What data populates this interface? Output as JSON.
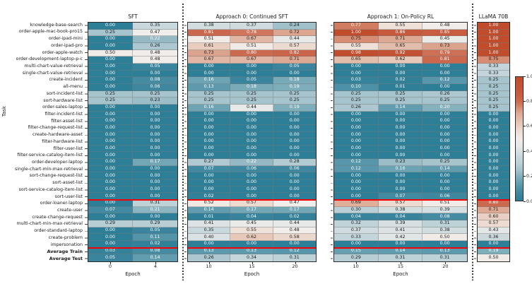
{
  "figure": {
    "ylabel": "Task",
    "xlabel": "Epoch",
    "colorbar_ticks": [
      "1.0",
      "0.8",
      "0.6",
      "0.4",
      "0.2",
      "0.0"
    ],
    "colors": {
      "cmap_low": "#2d7e97",
      "cmap_mid": "#f1efed",
      "cmap_high": "#c04c2c",
      "separator_line": "#f40000"
    }
  },
  "chart_data": {
    "type": "heatmap",
    "value_range": [
      0,
      1
    ],
    "rows": [
      "knowledge-base-search",
      "order-apple-mac-book-pro15",
      "order-ipad-mini",
      "order-ipad-pro",
      "order-apple-watch",
      "order-development-laptop-p-c",
      "multi-chart-value-retrieval",
      "single-chart-value-retrieval",
      "create-incident",
      "all-menu",
      "sort-incident-list",
      "sort-hardware-list",
      "order-sales-laptop",
      "filter-incident-list",
      "filter-asset-list",
      "filter-change-request-list",
      "create-hardware-asset",
      "filter-hardware-list",
      "filter-user-list",
      "filter-service-catalog-item-list",
      "order-developer-laptop",
      "single-chart-min-max-retrieval",
      "sort-change-request-list",
      "sort-asset-list",
      "sort-service-catalog-item-list",
      "sort-user-list",
      "order-loaner-laptop",
      "create-user",
      "create-change-request",
      "multi-chart-min-max-retrieval",
      "order-standard-laptop",
      "create-problem",
      "impersonation",
      "Average Train",
      "Average Test"
    ],
    "bold_rows": [
      "Average Train",
      "Average Test"
    ],
    "red_separator_after_row_indices": [
      25,
      32
    ],
    "panels": [
      {
        "title": "SFT",
        "epochs": [
          "0",
          "4"
        ],
        "show_xlabel": true,
        "values": [
          [
            0.0,
            0.35
          ],
          [
            0.25,
            0.47
          ],
          [
            0.0,
            0.22
          ],
          [
            0.0,
            0.26
          ],
          [
            0.5,
            0.48
          ],
          [
            0.0,
            0.48
          ],
          [
            0.0,
            0.05
          ],
          [
            0.0,
            0.0
          ],
          [
            0.0,
            0.08
          ],
          [
            0.0,
            0.06
          ],
          [
            0.25,
            0.25
          ],
          [
            0.25,
            0.23
          ],
          [
            0.0,
            0.0
          ],
          [
            0.0,
            0.0
          ],
          [
            0.0,
            0.0
          ],
          [
            0.0,
            0.0
          ],
          [
            0.0,
            0.0
          ],
          [
            0.0,
            0.0
          ],
          [
            0.0,
            0.0
          ],
          [
            0.0,
            0.0
          ],
          [
            0.0,
            0.17
          ],
          [
            0.0,
            0.0
          ],
          [
            0.0,
            0.0
          ],
          [
            0.0,
            0.0
          ],
          [
            0.0,
            0.0
          ],
          [
            0.0,
            0.0
          ],
          [
            0.0,
            0.31
          ],
          [
            0.07,
            0.21
          ],
          [
            0.0,
            0.0
          ],
          [
            0.29,
            0.29
          ],
          [
            0.0,
            0.05
          ],
          [
            0.0,
            0.11
          ],
          [
            0.0,
            0.02
          ],
          [
            0.03,
            0.08
          ],
          [
            0.05,
            0.14
          ]
        ]
      },
      {
        "title": "Approach 0: Continued SFT",
        "epochs": [
          "10",
          "15",
          "20"
        ],
        "show_xlabel": true,
        "values": [
          [
            0.38,
            0.37,
            0.24
          ],
          [
            0.81,
            0.78,
            0.72
          ],
          [
            0.51,
            0.67,
            0.44
          ],
          [
            0.61,
            0.51,
            0.57
          ],
          [
            0.73,
            0.8,
            0.82
          ],
          [
            0.67,
            0.67,
            0.71
          ],
          [
            0.0,
            0.0,
            0.05
          ],
          [
            0.0,
            0.0,
            0.0
          ],
          [
            0.16,
            0.05,
            0.18
          ],
          [
            0.13,
            0.18,
            0.19
          ],
          [
            0.25,
            0.25,
            0.25
          ],
          [
            0.25,
            0.25,
            0.25
          ],
          [
            0.16,
            0.44,
            0.19
          ],
          [
            0.0,
            0.0,
            0.0
          ],
          [
            0.0,
            0.0,
            0.0
          ],
          [
            0.0,
            0.0,
            0.0
          ],
          [
            0.0,
            0.0,
            0.0
          ],
          [
            0.0,
            0.0,
            0.0
          ],
          [
            0.0,
            0.0,
            0.0
          ],
          [
            0.0,
            0.0,
            0.0
          ],
          [
            0.27,
            0.22,
            0.28
          ],
          [
            0.07,
            0.06,
            0.06
          ],
          [
            0.0,
            0.0,
            0.0
          ],
          [
            0.0,
            0.0,
            0.0
          ],
          [
            0.0,
            0.0,
            0.0
          ],
          [
            0.02,
            0.0,
            0.0
          ],
          [
            0.52,
            0.57,
            0.47
          ],
          [
            0.14,
            0.17,
            0.17
          ],
          [
            0.01,
            0.04,
            0.02
          ],
          [
            0.41,
            0.45,
            0.44
          ],
          [
            0.35,
            0.55,
            0.48
          ],
          [
            0.4,
            0.62,
            0.58
          ],
          [
            0.0,
            0.0,
            0.0
          ],
          [
            0.13,
            0.13,
            0.12
          ],
          [
            0.26,
            0.34,
            0.31
          ]
        ]
      },
      {
        "title": "Approach 1: On-Policy RL",
        "epochs": [
          "10",
          "15",
          "20"
        ],
        "show_xlabel": true,
        "values": [
          [
            0.77,
            0.55,
            0.48
          ],
          [
            1.0,
            0.86,
            0.85
          ],
          [
            0.75,
            0.71,
            0.45
          ],
          [
            0.55,
            0.65,
            0.73
          ],
          [
            0.98,
            0.92,
            0.79
          ],
          [
            0.65,
            0.62,
            0.81
          ],
          [
            0.0,
            0.0,
            0.0
          ],
          [
            0.0,
            0.0,
            0.0
          ],
          [
            0.03,
            0.02,
            0.12
          ],
          [
            0.1,
            0.01,
            0.0
          ],
          [
            0.25,
            0.25,
            0.26
          ],
          [
            0.25,
            0.25,
            0.25
          ],
          [
            0.26,
            0.14,
            0.2
          ],
          [
            0.0,
            0.0,
            0.0
          ],
          [
            0.0,
            0.0,
            0.0
          ],
          [
            0.0,
            0.0,
            0.0
          ],
          [
            0.0,
            0.0,
            0.0
          ],
          [
            0.0,
            0.0,
            0.0
          ],
          [
            0.0,
            0.0,
            0.0
          ],
          [
            0.0,
            0.0,
            0.0
          ],
          [
            0.12,
            0.23,
            0.25
          ],
          [
            0.12,
            0.16,
            0.14
          ],
          [
            0.0,
            0.0,
            0.0
          ],
          [
            0.0,
            0.0,
            0.0
          ],
          [
            0.0,
            0.0,
            0.0
          ],
          [
            0.0,
            0.07,
            0.06
          ],
          [
            0.69,
            0.57,
            0.51
          ],
          [
            0.3,
            0.38,
            0.39
          ],
          [
            0.04,
            0.04,
            0.08
          ],
          [
            0.32,
            0.39,
            0.31
          ],
          [
            0.37,
            0.41,
            0.38
          ],
          [
            0.33,
            0.42,
            0.5
          ],
          [
            0.0,
            0.0,
            0.0
          ],
          [
            0.15,
            0.14,
            0.13
          ],
          [
            0.29,
            0.31,
            0.31
          ]
        ]
      },
      {
        "title": "LLaMA 70B",
        "epochs": [],
        "show_xlabel": false,
        "values": [
          [
            1.0
          ],
          [
            1.0
          ],
          [
            1.0
          ],
          [
            1.0
          ],
          [
            1.0
          ],
          [
            0.75
          ],
          [
            0.33
          ],
          [
            0.33
          ],
          [
            0.25
          ],
          [
            0.25
          ],
          [
            0.25
          ],
          [
            0.25
          ],
          [
            0.25
          ],
          [
            0.0
          ],
          [
            0.0
          ],
          [
            0.0
          ],
          [
            0.0
          ],
          [
            0.0
          ],
          [
            0.0
          ],
          [
            0.0
          ],
          [
            0.0
          ],
          [
            0.0
          ],
          [
            0.0
          ],
          [
            0.0
          ],
          [
            0.0
          ],
          [
            0.0
          ],
          [
            0.8
          ],
          [
            0.71
          ],
          [
            0.6
          ],
          [
            0.57
          ],
          [
            0.43
          ],
          [
            0.36
          ],
          [
            0.0
          ],
          [
            0.19
          ],
          [
            0.5
          ]
        ]
      }
    ]
  }
}
